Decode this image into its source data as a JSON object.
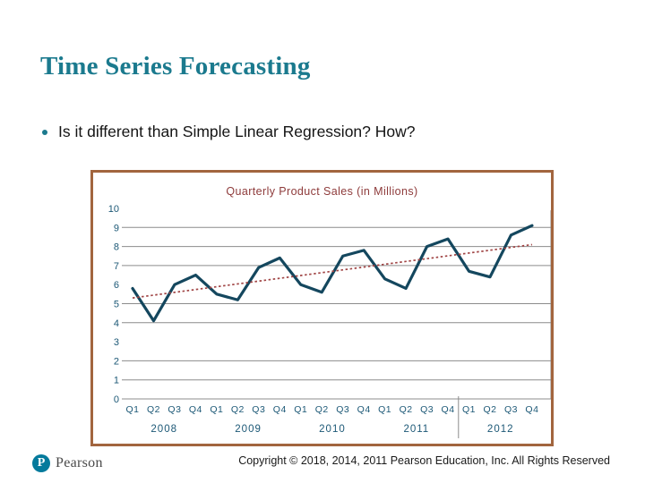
{
  "slide": {
    "title": "Time Series Forecasting",
    "bullet": "Is it different than Simple Linear Regression? How?"
  },
  "footer": {
    "logo_letter": "P",
    "brand": "Pearson",
    "copyright": "Copyright © 2018, 2014, 2011 Pearson Education, Inc. All Rights Reserved"
  },
  "colors": {
    "title_teal": "#1b7a8e",
    "chart_border": "#a2653e",
    "chart_title_maroon": "#8e3b3b",
    "axis_label_blue": "#1c5876",
    "gridline_gray": "#8c8c8c",
    "series_navy": "#14475e",
    "trend_maroon": "#a04444",
    "pearson_blue": "#047a9c"
  },
  "chart_data": {
    "type": "line",
    "title": "Quarterly Product Sales (in Millions)",
    "categories": [
      "Q1",
      "Q2",
      "Q3",
      "Q4",
      "Q1",
      "Q2",
      "Q3",
      "Q4",
      "Q1",
      "Q2",
      "Q3",
      "Q4",
      "Q1",
      "Q2",
      "Q3",
      "Q4",
      "Q1",
      "Q2",
      "Q3",
      "Q4"
    ],
    "year_groups": [
      "2008",
      "2009",
      "2010",
      "2011",
      "2012"
    ],
    "series": [
      {
        "name": "Quarterly product sales",
        "values": [
          5.8,
          4.1,
          6.0,
          6.5,
          5.5,
          5.2,
          6.9,
          7.4,
          6.0,
          5.6,
          7.5,
          7.8,
          6.3,
          5.8,
          8.0,
          8.4,
          6.7,
          6.4,
          8.6,
          9.1
        ]
      }
    ],
    "trend": {
      "name": "Linear trend (dotted)",
      "start_value": 5.3,
      "end_value": 8.1
    },
    "xlabel": "",
    "ylabel": "",
    "ylim": [
      0,
      10
    ],
    "yticks": [
      10,
      9,
      8,
      7,
      6,
      5,
      4,
      3,
      2,
      1,
      0
    ],
    "gridlines_at": [
      9,
      8,
      7,
      5,
      4,
      2,
      1,
      0
    ],
    "divider_before_category_index": 16,
    "legend": "none",
    "grid": "horizontal-only"
  }
}
